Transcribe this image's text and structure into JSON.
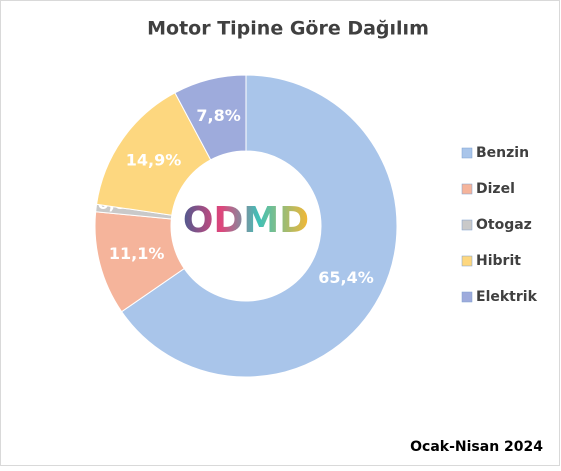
{
  "chart_data": {
    "type": "donut",
    "title": "Motor Tipine Göre Dağılım",
    "categories": [
      "Benzin",
      "Dizel",
      "Otogaz",
      "Hibrit",
      "Elektrik"
    ],
    "values": [
      65.4,
      11.1,
      0.8,
      14.9,
      7.8
    ],
    "value_labels": [
      "65,4%",
      "11,1%",
      "0,8%",
      "14,9%",
      "7,8%"
    ],
    "colors": [
      "#a9c5ea",
      "#f5b49b",
      "#c9c9c9",
      "#fdd77f",
      "#9eabdc"
    ],
    "legend": "right",
    "logo": "ODMD",
    "footnote": "Ocak-Nisan 2024"
  }
}
